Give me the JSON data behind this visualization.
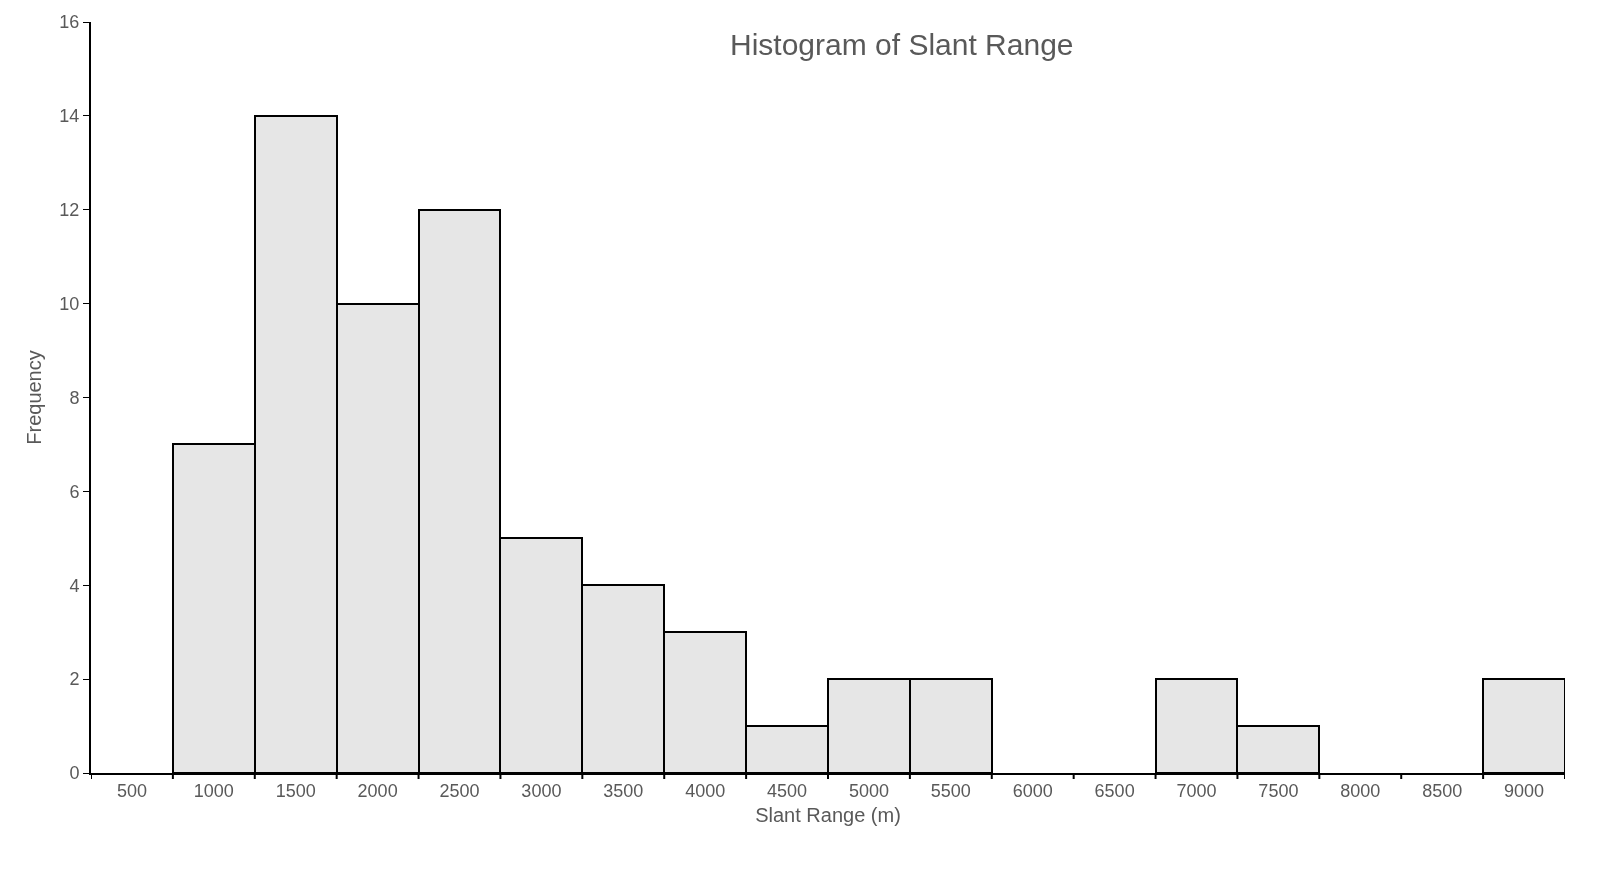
{
  "chart_data": {
    "type": "bar",
    "title": "Histogram of Slant Range",
    "xlabel": "Slant Range (m)",
    "ylabel": "Frequency",
    "categories": [
      "500",
      "1000",
      "1500",
      "2000",
      "2500",
      "3000",
      "3500",
      "4000",
      "4500",
      "5000",
      "5500",
      "6000",
      "6500",
      "7000",
      "7500",
      "8000",
      "8500",
      "9000"
    ],
    "values": [
      0,
      7,
      14,
      10,
      12,
      5,
      4,
      3,
      1,
      2,
      2,
      0,
      0,
      2,
      1,
      0,
      0,
      2
    ],
    "color": "#e6e6e6",
    "ylim": [
      0,
      16
    ],
    "yticks": [
      0,
      2,
      4,
      6,
      8,
      10,
      12,
      14,
      16
    ]
  }
}
